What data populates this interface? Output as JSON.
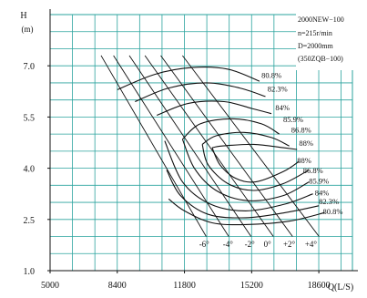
{
  "chart_data": {
    "type": "line",
    "title": "",
    "xlabel": "Q(L/S)",
    "ylabel": "H",
    "ylabel_unit": "(m)",
    "xlim": [
      5000,
      20300
    ],
    "ylim": [
      1.0,
      8.5
    ],
    "x_ticks": [
      5000,
      8400,
      11800,
      15200,
      18600
    ],
    "x_tick_labels": [
      "5000",
      "8400",
      "11800",
      "15200",
      "18600"
    ],
    "y_ticks": [
      1.0,
      2.5,
      4.0,
      5.5,
      7.0
    ],
    "y_tick_labels": [
      "1.0",
      "2.5",
      "4.0",
      "5.5",
      "7.0"
    ],
    "x_minor_step": 1133,
    "y_minor_step": 0.5,
    "grid": true,
    "grid_color": "#2aa39e",
    "line_color": "#111111",
    "legend": [
      "2000NEW−100",
      "n=215r/min",
      "D=2000mm",
      "(350ZQB−100)"
    ],
    "legend_position": "top-right",
    "blade_angle_lines": [
      {
        "label": "-6°",
        "points": [
          [
            7580,
            7.3
          ],
          [
            12900,
            2.0
          ]
        ]
      },
      {
        "label": "-4°",
        "points": [
          [
            8210,
            7.3
          ],
          [
            14040,
            2.0
          ]
        ]
      },
      {
        "label": "-2°",
        "points": [
          [
            9010,
            7.3
          ],
          [
            15170,
            2.0
          ]
        ]
      },
      {
        "label": "0°",
        "points": [
          [
            9800,
            7.3
          ],
          [
            16300,
            2.0
          ]
        ]
      },
      {
        "label": "+2°",
        "points": [
          [
            10600,
            7.3
          ],
          [
            17270,
            2.0
          ]
        ]
      },
      {
        "label": "+4°",
        "points": [
          [
            11700,
            7.3
          ],
          [
            18610,
            2.0
          ]
        ]
      }
    ],
    "angle_label_points": [
      [
        12800,
        1.7
      ],
      [
        14000,
        1.7
      ],
      [
        15100,
        1.7
      ],
      [
        16000,
        1.7
      ],
      [
        17100,
        1.7
      ],
      [
        18200,
        1.7
      ]
    ],
    "efficiency_upper": [
      {
        "label": "80.8%",
        "points": [
          [
            8400,
            6.3
          ],
          [
            10300,
            6.75
          ],
          [
            12200,
            6.95
          ],
          [
            14000,
            6.9
          ],
          [
            15600,
            6.55
          ]
        ],
        "label_at": [
          15700,
          6.65
        ]
      },
      {
        "label": "82.3%",
        "points": [
          [
            9300,
            5.95
          ],
          [
            11000,
            6.35
          ],
          [
            12900,
            6.5
          ],
          [
            14600,
            6.35
          ],
          [
            15900,
            6.1
          ]
        ],
        "label_at": [
          16000,
          6.25
        ]
      },
      {
        "label": "84%",
        "points": [
          [
            10400,
            5.55
          ],
          [
            12000,
            5.9
          ],
          [
            13800,
            5.95
          ],
          [
            15200,
            5.75
          ],
          [
            16200,
            5.6
          ]
        ],
        "label_at": [
          16400,
          5.7
        ]
      },
      {
        "label": "85.9%",
        "points": [
          [
            11700,
            4.85
          ],
          [
            12600,
            5.3
          ],
          [
            14200,
            5.45
          ],
          [
            15700,
            5.3
          ],
          [
            16600,
            5.0
          ]
        ],
        "label_at": [
          16800,
          5.35
        ]
      },
      {
        "label": "86.8%",
        "points": [
          [
            12700,
            4.7
          ],
          [
            13400,
            4.95
          ],
          [
            14800,
            5.05
          ],
          [
            16200,
            4.9
          ],
          [
            17100,
            4.65
          ]
        ],
        "label_at": [
          17200,
          5.05
        ]
      },
      {
        "label": "88%",
        "points": [
          [
            13200,
            4.6
          ],
          [
            13700,
            4.65
          ],
          [
            15300,
            4.7
          ],
          [
            16800,
            4.6
          ],
          [
            17500,
            4.55
          ]
        ],
        "label_at": [
          17600,
          4.65
        ]
      }
    ],
    "efficiency_lower": [
      {
        "label": "88%",
        "points": [
          [
            13200,
            4.6
          ],
          [
            13600,
            4.1
          ],
          [
            14400,
            3.7
          ],
          [
            15400,
            3.6
          ],
          [
            16800,
            3.9
          ],
          [
            17600,
            4.2
          ]
        ],
        "label_at": [
          17500,
          4.15
        ]
      },
      {
        "label": "86.8%",
        "points": [
          [
            12700,
            4.7
          ],
          [
            13000,
            4.1
          ],
          [
            14000,
            3.55
          ],
          [
            15300,
            3.35
          ],
          [
            16800,
            3.55
          ],
          [
            18100,
            3.95
          ]
        ],
        "label_at": [
          17800,
          3.85
        ]
      },
      {
        "label": "85.9%",
        "points": [
          [
            11700,
            4.85
          ],
          [
            12300,
            4.0
          ],
          [
            13400,
            3.35
          ],
          [
            15000,
            3.05
          ],
          [
            16800,
            3.2
          ],
          [
            18100,
            3.6
          ]
        ],
        "label_at": [
          18100,
          3.55
        ]
      },
      {
        "label": "84%",
        "points": [
          [
            10800,
            4.8
          ],
          [
            11700,
            3.6
          ],
          [
            13100,
            2.95
          ],
          [
            14900,
            2.75
          ],
          [
            16900,
            2.95
          ],
          [
            18300,
            3.25
          ]
        ],
        "label_at": [
          18400,
          3.2
        ]
      },
      {
        "label": "82.3%",
        "points": [
          [
            10900,
            3.95
          ],
          [
            11600,
            3.2
          ],
          [
            13000,
            2.65
          ],
          [
            14900,
            2.55
          ],
          [
            16900,
            2.7
          ],
          [
            18600,
            2.9
          ]
        ],
        "label_at": [
          18600,
          2.95
        ]
      },
      {
        "label": "80.8%",
        "points": [
          [
            11000,
            3.1
          ],
          [
            11800,
            2.75
          ],
          [
            13200,
            2.4
          ],
          [
            14900,
            2.35
          ],
          [
            17100,
            2.45
          ],
          [
            18900,
            2.7
          ]
        ],
        "label_at": [
          18800,
          2.65
        ]
      }
    ]
  }
}
